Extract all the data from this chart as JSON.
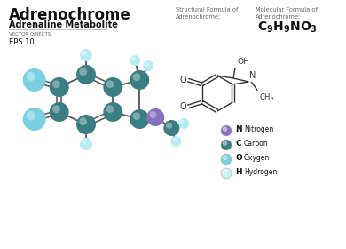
{
  "title": "Adrenochrome",
  "subtitle": "Adrenaline Metabolite",
  "label1": "VECTOR OBJECTS",
  "label2": "EPS 10",
  "struct_label": "Structural Formula of\nAdrenochrome:",
  "mol_label": "Molecular Formula of\nAdrenochrome:",
  "bg_color": "#ffffff",
  "atom_C": "#3a7d82",
  "atom_H_big": "#7ad0e0",
  "atom_H_small": "#b8ecf5",
  "atom_N": "#8870c0",
  "atom_O": "#7ad0e0",
  "bond_color": "#555555",
  "text_dark": "#111111",
  "text_gray": "#666666",
  "legend": [
    {
      "label": "Nitrogen",
      "letter": "N",
      "color": "#8870c0"
    },
    {
      "label": "Carbon",
      "letter": "C",
      "color": "#3a7d82"
    },
    {
      "label": "Oxygen",
      "letter": "O",
      "color": "#7ad0e0"
    },
    {
      "label": "Hydrogen",
      "letter": "H",
      "color": "#c8f0f8"
    }
  ]
}
